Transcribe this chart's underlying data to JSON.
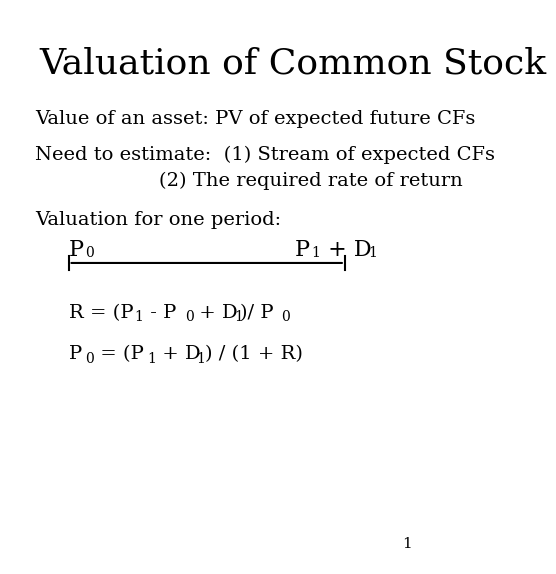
{
  "title": "Valuation of Common Stock",
  "line1": "Value of an asset: PV of expected future CFs",
  "line2a": "Need to estimate:  (1) Stream of expected CFs",
  "line2b": "(2) The required rate of return",
  "line3": "Valuation for one period:",
  "p0_label": "P",
  "p0_sub": "0",
  "p1d1_label": "P",
  "p1_sub": "1",
  "d1_label": " + D",
  "d1_sub": "1",
  "formula1_main": "R = (P",
  "formula1_p1sub": "1",
  "formula1_mid": " - P",
  "formula1_p0sub": "0",
  "formula1_end": " + D",
  "formula1_d1sub": "1",
  "formula1_tail": ")/ P",
  "formula1_p0sub2": "0",
  "formula2_main": "P",
  "formula2_p0sub": "0",
  "formula2_mid": " = (P",
  "formula2_p1sub": "1",
  "formula2_d1": " + D",
  "formula2_d1sub": "1",
  "formula2_end": ") / (1 + R)",
  "page_num": "1",
  "bg_color": "#ffffff",
  "text_color": "#000000",
  "title_fontsize": 26,
  "body_fontsize": 14,
  "formula_fontsize": 14,
  "sub_fontsize": 10
}
